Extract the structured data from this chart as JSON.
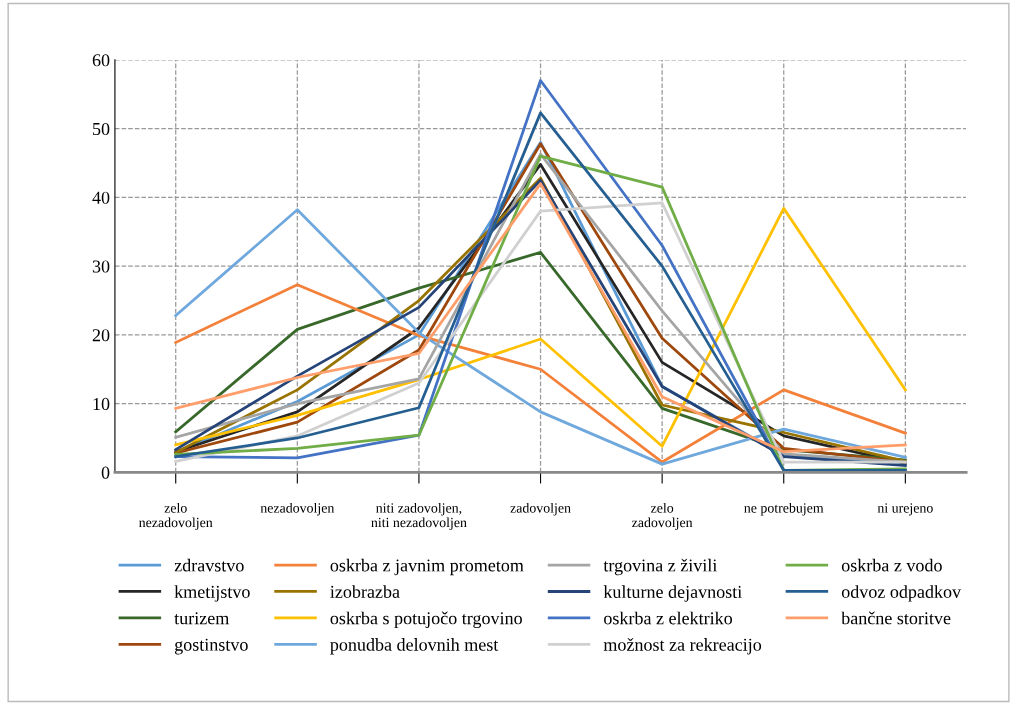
{
  "chart_data": {
    "type": "line",
    "categories": [
      "zelo\nnezadovoljen",
      "nezadovoljen",
      "niti zadovoljen,\nniti nezadovoljen",
      "zadovoljen",
      "zelo\nzadovoljen",
      "ne potrebujem",
      "ni urejeno"
    ],
    "ylim": [
      0,
      60
    ],
    "yticks": [
      0,
      10,
      20,
      30,
      40,
      50,
      60
    ],
    "grid": true,
    "legend": "bottom",
    "marker": "none",
    "line_style": "solid",
    "series": [
      {
        "name": "zdravstvo",
        "color": "#5b9bd5",
        "values": [
          2.9,
          10.3,
          20,
          48,
          12.5,
          2.5,
          1.3
        ]
      },
      {
        "name": "kmetijstvo",
        "color": "#262626",
        "values": [
          3.0,
          8.8,
          21,
          44.8,
          16,
          5.3,
          1.3
        ]
      },
      {
        "name": "turizem",
        "color": "#38692b",
        "values": [
          5.9,
          20.8,
          26.8,
          32,
          9.3,
          3.3,
          1.8
        ]
      },
      {
        "name": "gostinstvo",
        "color": "#9e480e",
        "values": [
          2.8,
          7.3,
          17.8,
          47.8,
          19.5,
          3.5,
          1.5
        ]
      },
      {
        "name": "oskrba z javnim prometom",
        "color": "#f4813a",
        "values": [
          18.9,
          27.3,
          19.9,
          15,
          1.5,
          12,
          5.7
        ]
      },
      {
        "name": "izobrazba",
        "color": "#997300",
        "values": [
          2.9,
          12,
          25,
          42.8,
          9.8,
          5.8,
          1.6
        ]
      },
      {
        "name": "oskrba s potujočo trgovino",
        "color": "#ffc000",
        "values": [
          4.0,
          8.3,
          13.5,
          19.4,
          3.8,
          38.4,
          12
        ]
      },
      {
        "name": "ponudba delovnih mest",
        "color": "#6fa8dc",
        "values": [
          22.8,
          38.2,
          20.3,
          8.8,
          1.2,
          6.3,
          2.2
        ]
      },
      {
        "name": "trgovina z živili",
        "color": "#a5a5a5",
        "values": [
          5.1,
          10,
          13.6,
          46.3,
          23.5,
          2.7,
          1.5
        ]
      },
      {
        "name": "kulturne dejavnosti",
        "color": "#264478",
        "values": [
          3.3,
          14,
          24,
          42.5,
          12.5,
          2.3,
          1
        ]
      },
      {
        "name": "oskrba z elektriko",
        "color": "#4472c4",
        "values": [
          2.3,
          2.1,
          5.4,
          57,
          33,
          0.3,
          0.3
        ]
      },
      {
        "name": "možnost za rekreacijo",
        "color": "#d0d0d0",
        "values": [
          1.6,
          5.3,
          13,
          38,
          39.2,
          1.5,
          1.5
        ]
      },
      {
        "name": "oskrba z vodo",
        "color": "#70ad47",
        "values": [
          2.6,
          3.5,
          5.4,
          46,
          41.5,
          0.3,
          0.5
        ]
      },
      {
        "name": "odvoz odpadkov",
        "color": "#255e91",
        "values": [
          2.3,
          5.0,
          9.4,
          52.3,
          30,
          0.3,
          0.3
        ]
      },
      {
        "name": "bančne storitve",
        "color": "#ff9e6a",
        "values": [
          9.3,
          13.8,
          17.3,
          42,
          11,
          3.0,
          4.0
        ]
      }
    ]
  }
}
